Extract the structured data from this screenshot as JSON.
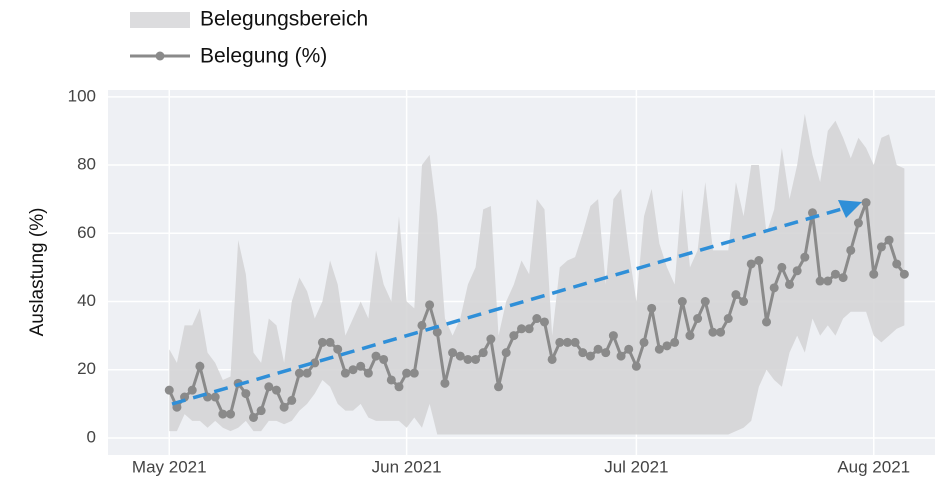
{
  "chart_data": {
    "type": "line",
    "ylabel": "Auslastung (%)",
    "ylim": [
      -5,
      102
    ],
    "yticks": [
      0,
      20,
      40,
      60,
      80,
      100
    ],
    "xlim": [
      "2021-04-23",
      "2021-08-09"
    ],
    "xticks": [
      {
        "value": "2021-05-01",
        "label": "May 2021"
      },
      {
        "value": "2021-06-01",
        "label": "Jun 2021"
      },
      {
        "value": "2021-07-01",
        "label": "Jul 2021"
      },
      {
        "value": "2021-08-01",
        "label": "Aug 2021"
      }
    ],
    "grid": true,
    "start": "2021-05-01",
    "band": {
      "name": "Belegungsbereich",
      "color": "#d2d2d4",
      "high": [
        26,
        22,
        33,
        33,
        38,
        25,
        22,
        17,
        18,
        58,
        48,
        25,
        22,
        35,
        33,
        22,
        40,
        47,
        43,
        35,
        40,
        52,
        45,
        30,
        35,
        40,
        35,
        55,
        45,
        40,
        65,
        40,
        38,
        80,
        83,
        65,
        35,
        30,
        35,
        45,
        50,
        67,
        68,
        30,
        40,
        45,
        52,
        48,
        70,
        67,
        30,
        50,
        52,
        53,
        60,
        68,
        70,
        45,
        70,
        73,
        55,
        40,
        65,
        73,
        57,
        50,
        45,
        73,
        50,
        55,
        75,
        55,
        55,
        55,
        75,
        65,
        80,
        80,
        60,
        67,
        85,
        70,
        80,
        95,
        83,
        75,
        90,
        93,
        88,
        82,
        88,
        85,
        80,
        88,
        89,
        80,
        79
      ],
      "low": [
        2,
        2,
        7,
        5,
        5,
        3,
        5,
        3,
        2,
        3,
        5,
        2,
        2,
        5,
        5,
        4,
        5,
        8,
        10,
        13,
        17,
        15,
        10,
        8,
        8,
        10,
        6,
        5,
        5,
        5,
        5,
        3,
        6,
        3,
        10,
        1,
        1,
        1,
        1,
        1,
        1,
        1,
        1,
        1,
        1,
        1,
        1,
        1,
        1,
        1,
        1,
        1,
        1,
        1,
        1,
        1,
        1,
        1,
        1,
        1,
        1,
        1,
        1,
        1,
        1,
        1,
        1,
        1,
        1,
        1,
        1,
        1,
        1,
        1,
        2,
        3,
        5,
        15,
        20,
        17,
        15,
        25,
        30,
        25,
        35,
        30,
        33,
        30,
        35,
        37,
        37,
        37,
        30,
        28,
        30,
        32,
        33
      ]
    },
    "series": [
      {
        "name": "Belegung (%)",
        "color": "#8a8a8a",
        "values": [
          14,
          9,
          12,
          14,
          21,
          12,
          12,
          7,
          7,
          16,
          13,
          6,
          8,
          15,
          14,
          9,
          11,
          19,
          19,
          22,
          28,
          28,
          26,
          19,
          20,
          21,
          19,
          24,
          23,
          17,
          15,
          19,
          19,
          33,
          39,
          31,
          16,
          25,
          24,
          23,
          23,
          25,
          29,
          15,
          25,
          30,
          32,
          32,
          35,
          34,
          23,
          28,
          28,
          28,
          25,
          24,
          26,
          25,
          30,
          24,
          26,
          21,
          28,
          38,
          26,
          27,
          28,
          40,
          30,
          35,
          40,
          31,
          31,
          35,
          42,
          40,
          51,
          52,
          34,
          44,
          50,
          45,
          49,
          53,
          66,
          46,
          46,
          48,
          47,
          55,
          63,
          69,
          48,
          56,
          58,
          51,
          48
        ]
      }
    ]
  }
}
